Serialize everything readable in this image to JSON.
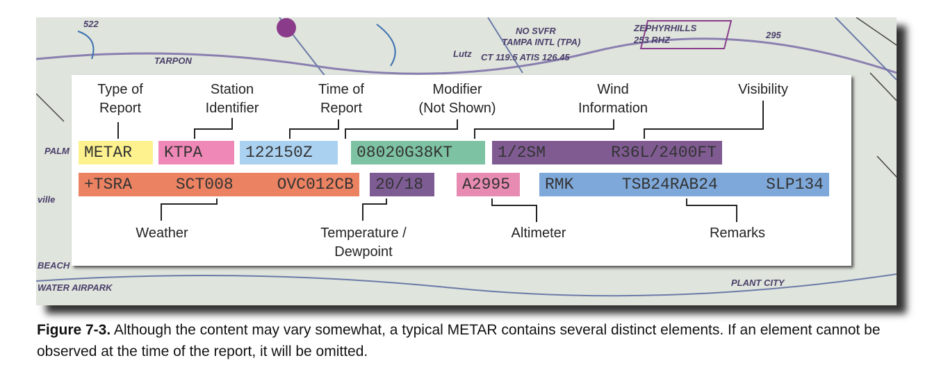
{
  "map": {
    "labels": [
      "522",
      "NO SVFR",
      "TAMPA INTL (TPA)",
      "CT 119.5 ATIS 126.45",
      "ZEPHYRHILLS",
      "253 RHZ",
      "295",
      "Lutz",
      "TARPON",
      "PALM",
      "ville",
      "BEACH",
      "WATER AIRPARK",
      "PLANT CITY"
    ]
  },
  "panel": {
    "labels_top": [
      [
        "Type of",
        "Report"
      ],
      [
        "Station",
        "Identifier"
      ],
      [
        "Time of",
        "Report"
      ],
      [
        "Modifier",
        "(Not Shown)"
      ],
      [
        "Wind",
        "Information"
      ],
      [
        "Visibility"
      ]
    ],
    "rows": [
      [
        {
          "tokens": [
            "METAR"
          ],
          "color": "#fdf28e"
        },
        {
          "tokens": [
            "KTPA"
          ],
          "color": "#ef88b6"
        },
        {
          "tokens": [
            "122150Z"
          ],
          "color": "#abd1f0"
        },
        {
          "tokens": [
            "08020G38KT"
          ],
          "color": "#7dc2a2"
        },
        {
          "tokens": [
            "1/2SM",
            "R36L/2400FT"
          ],
          "color": "#7f5b92"
        }
      ],
      [
        {
          "tokens": [
            "+TSRA",
            "SCT008",
            "OVC012CB"
          ],
          "color": "#eb8262"
        },
        {
          "tokens": [
            "20/18"
          ],
          "color": "#7d5b93"
        },
        {
          "tokens": [
            "A2995"
          ],
          "color": "#e78bb2"
        },
        {
          "tokens": [
            "RMK",
            "TSB24RAB24",
            "SLP134"
          ],
          "color": "#7ea8d9"
        }
      ]
    ],
    "labels_bottom": [
      [
        "Weather"
      ],
      [
        "Temperature /",
        "Dewpoint"
      ],
      [
        "Altimeter"
      ],
      [
        "Remarks"
      ]
    ]
  },
  "caption": {
    "label": "Figure 7-3.",
    "text": " Although the content may vary somewhat, a typical METAR contains several distinct elements. If an element cannot be observed at the time of the report, it will be omitted."
  }
}
